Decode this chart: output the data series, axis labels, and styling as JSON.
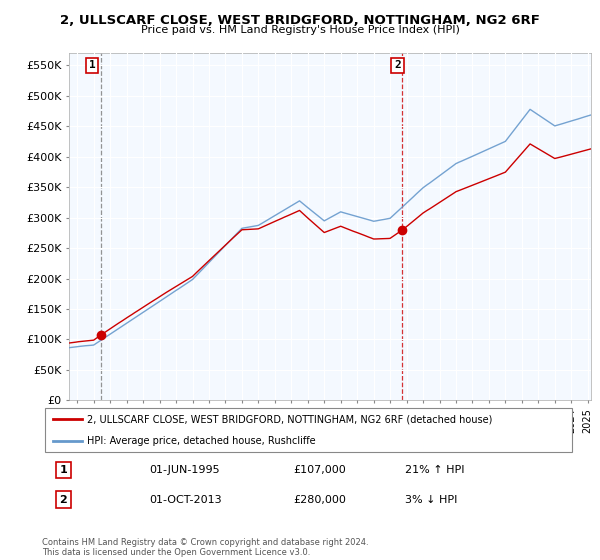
{
  "title_line1": "2, ULLSCARF CLOSE, WEST BRIDGFORD, NOTTINGHAM, NG2 6RF",
  "title_line2": "Price paid vs. HM Land Registry's House Price Index (HPI)",
  "ylim": [
    0,
    570000
  ],
  "yticks": [
    0,
    50000,
    100000,
    150000,
    200000,
    250000,
    300000,
    350000,
    400000,
    450000,
    500000,
    550000
  ],
  "ytick_labels": [
    "£0",
    "£50K",
    "£100K",
    "£150K",
    "£200K",
    "£250K",
    "£300K",
    "£350K",
    "£400K",
    "£450K",
    "£500K",
    "£550K"
  ],
  "legend_line1": "2, ULLSCARF CLOSE, WEST BRIDGFORD, NOTTINGHAM, NG2 6RF (detached house)",
  "legend_line2": "HPI: Average price, detached house, Rushcliffe",
  "annotation1_label": "1",
  "annotation1_date": "01-JUN-1995",
  "annotation1_price": "£107,000",
  "annotation1_hpi": "21% ↑ HPI",
  "annotation2_label": "2",
  "annotation2_date": "01-OCT-2013",
  "annotation2_price": "£280,000",
  "annotation2_hpi": "3% ↓ HPI",
  "red_color": "#cc0000",
  "blue_color": "#6699cc",
  "bg_color": "#ddeeff",
  "grid_color": "#ffffff",
  "footer_text": "Contains HM Land Registry data © Crown copyright and database right 2024.\nThis data is licensed under the Open Government Licence v3.0.",
  "sale1_date": 1995.417,
  "sale1_price": 107000,
  "sale2_date": 2013.75,
  "sale2_price": 280000,
  "xmin": 1993.5,
  "xmax": 2025.2
}
